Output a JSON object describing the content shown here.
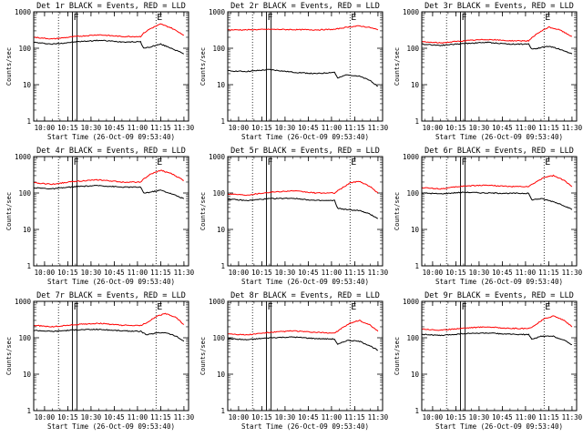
{
  "figure": {
    "xlabel": "Start Time (26-Oct-09 09:53:40)",
    "ylabel": "Counts/sec",
    "colors": {
      "events": "#000000",
      "lld": "#ff0000",
      "axes": "#000000"
    }
  },
  "chart_data": [
    {
      "type": "line",
      "title": "Det 1r BLACK = Events, RED = LLD",
      "xlabel": "Start Time (26-Oct-09 09:53:40)",
      "ylabel": "Counts/sec",
      "yscale": "log",
      "xlim": [
        "09:53",
        "11:33"
      ],
      "ylim": [
        1,
        1000
      ],
      "x_ticks": [
        "10:00",
        "10:15",
        "10:30",
        "10:45",
        "11:00",
        "11:15",
        "11:30"
      ],
      "y_ticks": [
        "1",
        "10",
        "100",
        "1000"
      ],
      "markers": [
        {
          "label": "F",
          "time": "10:18",
          "style": "box",
          "end": "10:21"
        },
        {
          "label": "E",
          "time": "11:12",
          "style": "dotted"
        }
      ],
      "extra_dotted": [
        "10:09"
      ],
      "series": [
        {
          "name": "Events",
          "color": "#000000",
          "x": [
            "09:53",
            "10:05",
            "10:20",
            "10:35",
            "10:50",
            "11:02",
            "11:04",
            "11:08",
            "11:15",
            "11:22",
            "11:30"
          ],
          "values": [
            145,
            130,
            150,
            165,
            150,
            150,
            100,
            108,
            130,
            100,
            70
          ]
        },
        {
          "name": "LLD",
          "color": "#ff0000",
          "x": [
            "09:53",
            "10:05",
            "10:20",
            "10:35",
            "10:50",
            "11:02",
            "11:04",
            "11:08",
            "11:15",
            "11:22",
            "11:30"
          ],
          "values": [
            200,
            180,
            210,
            235,
            210,
            210,
            260,
            340,
            460,
            360,
            230
          ]
        }
      ]
    },
    {
      "type": "line",
      "title": "Det 2r BLACK = Events, RED = LLD",
      "xlabel": "Start Time (26-Oct-09 09:53:40)",
      "ylabel": "Counts/sec",
      "yscale": "log",
      "xlim": [
        "09:53",
        "11:33"
      ],
      "ylim": [
        1,
        1000
      ],
      "x_ticks": [
        "10:00",
        "10:15",
        "10:30",
        "10:45",
        "11:00",
        "11:15",
        "11:30"
      ],
      "y_ticks": [
        "1",
        "10",
        "100",
        "1000"
      ],
      "markers": [
        {
          "label": "F",
          "time": "10:18",
          "style": "box",
          "end": "10:21"
        },
        {
          "label": "E",
          "time": "11:12",
          "style": "dotted"
        }
      ],
      "extra_dotted": [
        "10:09"
      ],
      "series": [
        {
          "name": "Events",
          "color": "#000000",
          "x": [
            "09:53",
            "10:05",
            "10:20",
            "10:35",
            "10:50",
            "11:02",
            "11:04",
            "11:10",
            "11:18",
            "11:25",
            "11:30"
          ],
          "values": [
            24,
            23,
            26,
            22,
            20,
            22,
            15,
            19,
            17,
            13,
            9
          ]
        },
        {
          "name": "LLD",
          "color": "#ff0000",
          "x": [
            "09:53",
            "10:05",
            "10:20",
            "10:35",
            "10:50",
            "11:02",
            "11:10",
            "11:18",
            "11:25",
            "11:30"
          ],
          "values": [
            320,
            320,
            330,
            325,
            320,
            330,
            380,
            410,
            370,
            320
          ]
        }
      ]
    },
    {
      "type": "line",
      "title": "Det 3r BLACK = Events, RED = LLD",
      "xlabel": "Start Time (26-Oct-09 09:53:40)",
      "ylabel": "Counts/sec",
      "yscale": "log",
      "xlim": [
        "09:53",
        "11:33"
      ],
      "ylim": [
        1,
        1000
      ],
      "x_ticks": [
        "10:00",
        "10:15",
        "10:30",
        "10:45",
        "11:00",
        "11:15",
        "11:30"
      ],
      "y_ticks": [
        "1",
        "10",
        "100",
        "1000"
      ],
      "markers": [
        {
          "label": "F",
          "time": "10:18",
          "style": "box",
          "end": "10:21"
        },
        {
          "label": "E",
          "time": "11:12",
          "style": "dotted"
        }
      ],
      "extra_dotted": [
        "10:09"
      ],
      "series": [
        {
          "name": "Events",
          "color": "#000000",
          "x": [
            "09:53",
            "10:05",
            "10:20",
            "10:35",
            "10:50",
            "11:02",
            "11:04",
            "11:08",
            "11:15",
            "11:22",
            "11:30"
          ],
          "values": [
            130,
            120,
            135,
            145,
            130,
            130,
            95,
            100,
            115,
            95,
            70
          ]
        },
        {
          "name": "LLD",
          "color": "#ff0000",
          "x": [
            "09:53",
            "10:05",
            "10:20",
            "10:35",
            "10:50",
            "11:02",
            "11:04",
            "11:08",
            "11:15",
            "11:22",
            "11:30"
          ],
          "values": [
            150,
            140,
            160,
            175,
            160,
            160,
            190,
            260,
            380,
            320,
            210
          ]
        }
      ]
    },
    {
      "type": "line",
      "title": "Det 4r BLACK = Events, RED = LLD",
      "xlabel": "Start Time (26-Oct-09 09:53:40)",
      "ylabel": "Counts/sec",
      "yscale": "log",
      "xlim": [
        "09:53",
        "11:33"
      ],
      "ylim": [
        1,
        1000
      ],
      "x_ticks": [
        "10:00",
        "10:15",
        "10:30",
        "10:45",
        "11:00",
        "11:15",
        "11:30"
      ],
      "y_ticks": [
        "1",
        "10",
        "100",
        "1000"
      ],
      "markers": [
        {
          "label": "F",
          "time": "10:18",
          "style": "box",
          "end": "10:21"
        },
        {
          "label": "E",
          "time": "11:12",
          "style": "dotted"
        }
      ],
      "extra_dotted": [
        "10:09"
      ],
      "series": [
        {
          "name": "Events",
          "color": "#000000",
          "x": [
            "09:53",
            "10:05",
            "10:20",
            "10:35",
            "10:50",
            "11:02",
            "11:04",
            "11:08",
            "11:15",
            "11:22",
            "11:30"
          ],
          "values": [
            140,
            130,
            150,
            160,
            145,
            145,
            100,
            105,
            120,
            95,
            70
          ]
        },
        {
          "name": "LLD",
          "color": "#ff0000",
          "x": [
            "09:53",
            "10:05",
            "10:20",
            "10:35",
            "10:50",
            "11:02",
            "11:04",
            "11:08",
            "11:15",
            "11:22",
            "11:30"
          ],
          "values": [
            190,
            175,
            210,
            230,
            200,
            200,
            240,
            320,
            420,
            340,
            220
          ]
        }
      ]
    },
    {
      "type": "line",
      "title": "Det 5r BLACK = Events, RED = LLD",
      "xlabel": "Start Time (26-Oct-09 09:53:40)",
      "ylabel": "Counts/sec",
      "yscale": "log",
      "xlim": [
        "09:53",
        "11:33"
      ],
      "ylim": [
        1,
        1000
      ],
      "x_ticks": [
        "10:00",
        "10:15",
        "10:30",
        "10:45",
        "11:00",
        "11:15",
        "11:30"
      ],
      "y_ticks": [
        "1",
        "10",
        "100",
        "1000"
      ],
      "markers": [
        {
          "label": "F",
          "time": "10:18",
          "style": "box",
          "end": "10:21"
        },
        {
          "label": "E",
          "time": "11:12",
          "style": "dotted"
        }
      ],
      "extra_dotted": [
        "10:09"
      ],
      "series": [
        {
          "name": "Events",
          "color": "#000000",
          "x": [
            "09:53",
            "10:05",
            "10:20",
            "10:35",
            "10:50",
            "11:02",
            "11:04",
            "11:10",
            "11:18",
            "11:25",
            "11:30"
          ],
          "values": [
            68,
            62,
            70,
            72,
            62,
            62,
            38,
            35,
            33,
            26,
            20
          ]
        },
        {
          "name": "LLD",
          "color": "#ff0000",
          "x": [
            "09:53",
            "10:05",
            "10:20",
            "10:35",
            "10:50",
            "11:02",
            "11:06",
            "11:12",
            "11:18",
            "11:25",
            "11:30"
          ],
          "values": [
            95,
            88,
            105,
            115,
            100,
            100,
            130,
            190,
            210,
            150,
            100
          ]
        }
      ]
    },
    {
      "type": "line",
      "title": "Det 6r BLACK = Events, RED = LLD",
      "xlabel": "Start Time (26-Oct-09 09:53:40)",
      "ylabel": "Counts/sec",
      "yscale": "log",
      "xlim": [
        "09:53",
        "11:33"
      ],
      "ylim": [
        1,
        1000
      ],
      "x_ticks": [
        "10:00",
        "10:15",
        "10:30",
        "10:45",
        "11:00",
        "11:15",
        "11:30"
      ],
      "y_ticks": [
        "1",
        "10",
        "100",
        "1000"
      ],
      "markers": [
        {
          "label": "F",
          "time": "10:18",
          "style": "box",
          "end": "10:21"
        },
        {
          "label": "E",
          "time": "11:12",
          "style": "dotted"
        }
      ],
      "extra_dotted": [
        "10:09"
      ],
      "series": [
        {
          "name": "Events",
          "color": "#000000",
          "x": [
            "09:53",
            "10:05",
            "10:20",
            "10:35",
            "10:50",
            "11:02",
            "11:04",
            "11:10",
            "11:18",
            "11:25",
            "11:30"
          ],
          "values": [
            100,
            95,
            105,
            100,
            98,
            98,
            65,
            70,
            58,
            45,
            35
          ]
        },
        {
          "name": "LLD",
          "color": "#ff0000",
          "x": [
            "09:53",
            "10:05",
            "10:20",
            "10:35",
            "10:50",
            "11:02",
            "11:06",
            "11:12",
            "11:18",
            "11:25",
            "11:30"
          ],
          "values": [
            140,
            130,
            155,
            165,
            150,
            150,
            190,
            270,
            300,
            220,
            150
          ]
        }
      ]
    },
    {
      "type": "line",
      "title": "Det 7r BLACK = Events, RED = LLD",
      "xlabel": "Start Time (26-Oct-09 09:53:40)",
      "ylabel": "Counts/sec",
      "yscale": "log",
      "xlim": [
        "09:53",
        "11:33"
      ],
      "ylim": [
        1,
        1000
      ],
      "x_ticks": [
        "10:00",
        "10:15",
        "10:30",
        "10:45",
        "11:00",
        "11:15",
        "11:30"
      ],
      "y_ticks": [
        "1",
        "10",
        "100",
        "1000"
      ],
      "markers": [
        {
          "label": "F",
          "time": "10:18",
          "style": "box",
          "end": "10:21"
        },
        {
          "label": "E",
          "time": "11:12",
          "style": "dotted"
        }
      ],
      "extra_dotted": [
        "10:09"
      ],
      "series": [
        {
          "name": "Events",
          "color": "#000000",
          "x": [
            "09:53",
            "10:05",
            "10:20",
            "10:35",
            "10:50",
            "11:02",
            "11:06",
            "11:12",
            "11:18",
            "11:25",
            "11:30"
          ],
          "values": [
            160,
            150,
            165,
            170,
            155,
            150,
            120,
            135,
            140,
            110,
            80
          ]
        },
        {
          "name": "LLD",
          "color": "#ff0000",
          "x": [
            "09:53",
            "10:05",
            "10:20",
            "10:35",
            "10:50",
            "11:02",
            "11:06",
            "11:12",
            "11:18",
            "11:25",
            "11:30"
          ],
          "values": [
            220,
            200,
            230,
            250,
            220,
            215,
            260,
            380,
            460,
            360,
            230
          ]
        }
      ]
    },
    {
      "type": "line",
      "title": "Det 8r BLACK = Events, RED = LLD",
      "xlabel": "Start Time (26-Oct-09 09:53:40)",
      "ylabel": "Counts/sec",
      "yscale": "log",
      "xlim": [
        "09:53",
        "11:33"
      ],
      "ylim": [
        1,
        1000
      ],
      "x_ticks": [
        "10:00",
        "10:15",
        "10:30",
        "10:45",
        "11:00",
        "11:15",
        "11:30"
      ],
      "y_ticks": [
        "1",
        "10",
        "100",
        "1000"
      ],
      "markers": [
        {
          "label": "F",
          "time": "10:18",
          "style": "box",
          "end": "10:21"
        },
        {
          "label": "E",
          "time": "11:12",
          "style": "dotted"
        }
      ],
      "extra_dotted": [
        "10:09"
      ],
      "series": [
        {
          "name": "Events",
          "color": "#000000",
          "x": [
            "09:53",
            "10:05",
            "10:20",
            "10:35",
            "10:50",
            "11:02",
            "11:04",
            "11:10",
            "11:18",
            "11:25",
            "11:30"
          ],
          "values": [
            95,
            88,
            100,
            105,
            95,
            92,
            65,
            85,
            80,
            60,
            45
          ]
        },
        {
          "name": "LLD",
          "color": "#ff0000",
          "x": [
            "09:53",
            "10:05",
            "10:20",
            "10:35",
            "10:50",
            "11:02",
            "11:06",
            "11:12",
            "11:18",
            "11:25",
            "11:30"
          ],
          "values": [
            130,
            120,
            140,
            155,
            140,
            135,
            175,
            250,
            300,
            220,
            150
          ]
        }
      ]
    },
    {
      "type": "line",
      "title": "Det 9r BLACK = Events, RED = LLD",
      "xlabel": "Start Time (26-Oct-09 09:53:40)",
      "ylabel": "Counts/sec",
      "yscale": "log",
      "xlim": [
        "09:53",
        "11:33"
      ],
      "ylim": [
        1,
        1000
      ],
      "x_ticks": [
        "10:00",
        "10:15",
        "10:30",
        "10:45",
        "11:00",
        "11:15",
        "11:30"
      ],
      "y_ticks": [
        "1",
        "10",
        "100",
        "1000"
      ],
      "markers": [
        {
          "label": "F",
          "time": "10:18",
          "style": "box",
          "end": "10:21"
        },
        {
          "label": "E",
          "time": "11:12",
          "style": "dotted"
        }
      ],
      "extra_dotted": [
        "10:09"
      ],
      "series": [
        {
          "name": "Events",
          "color": "#000000",
          "x": [
            "09:53",
            "10:05",
            "10:20",
            "10:35",
            "10:50",
            "11:02",
            "11:04",
            "11:10",
            "11:18",
            "11:25",
            "11:30"
          ],
          "values": [
            125,
            115,
            130,
            135,
            125,
            122,
            90,
            110,
            110,
            85,
            65
          ]
        },
        {
          "name": "LLD",
          "color": "#ff0000",
          "x": [
            "09:53",
            "10:05",
            "10:20",
            "10:35",
            "10:50",
            "11:02",
            "11:06",
            "11:12",
            "11:18",
            "11:25",
            "11:30"
          ],
          "values": [
            175,
            160,
            185,
            200,
            180,
            178,
            220,
            330,
            400,
            300,
            200
          ]
        }
      ]
    }
  ]
}
